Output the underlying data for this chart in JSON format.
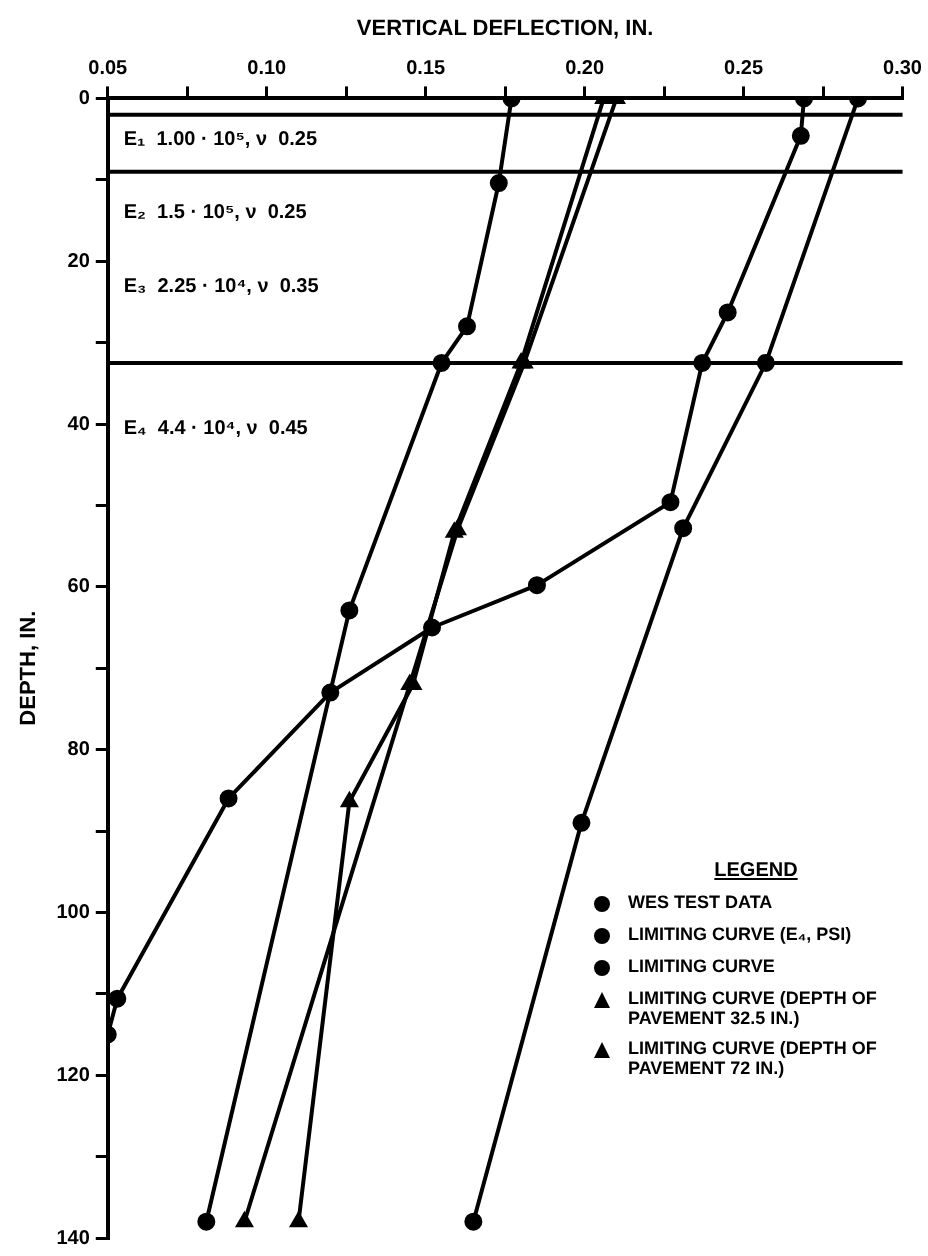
{
  "chart_data": {
    "type": "line",
    "xlabel": "VERTICAL DEFLECTION, IN.",
    "ylabel": "DEPTH, IN.",
    "legend_title": "LEGEND",
    "xlim": [
      0.05,
      0.3
    ],
    "xticks": [
      {
        "value": 0.05,
        "label": "0.05"
      },
      {
        "value": 0.075,
        "label": null
      },
      {
        "value": 0.1,
        "label": "0.10"
      },
      {
        "value": 0.125,
        "label": null
      },
      {
        "value": 0.15,
        "label": "0.15"
      },
      {
        "value": 0.175,
        "label": null
      },
      {
        "value": 0.2,
        "label": "0.20"
      },
      {
        "value": 0.225,
        "label": null
      },
      {
        "value": 0.25,
        "label": "0.25"
      },
      {
        "value": 0.275,
        "label": null
      },
      {
        "value": 0.3,
        "label": "0.30"
      }
    ],
    "ylim": [
      140,
      0
    ],
    "yticks": [
      0,
      {
        "value": 10,
        "label": null
      },
      20,
      {
        "value": 30,
        "label": null
      },
      40,
      {
        "value": 50,
        "label": null
      },
      60,
      {
        "value": 70,
        "label": null
      },
      80,
      {
        "value": 90,
        "label": null
      },
      100,
      {
        "value": 110,
        "label": null
      },
      120,
      {
        "value": 130,
        "label": null
      },
      140
    ],
    "grid": false,
    "legend": "bottom right",
    "line_style": "solid",
    "series": [
      {
        "name": "WES TEST DATA",
        "color": "#000000",
        "marker": "circle",
        "x": [
          0.269,
          0.268,
          0.245,
          0.237,
          0.227,
          0.185,
          0.152,
          0.12,
          0.088,
          0.053,
          0.05
        ],
        "values": [
          0,
          4.6,
          26.3,
          32.5,
          49.6,
          59.8,
          65,
          73,
          86,
          110.6,
          115
        ]
      },
      {
        "name": "LIMITING CURVE (E₄, PSI)",
        "color": "#000000",
        "marker": "circle",
        "x": [
          0.286,
          0.257,
          0.231,
          0.199,
          0.165
        ],
        "values": [
          0,
          32.5,
          52.8,
          89,
          138
        ]
      },
      {
        "name": "LIMITING CURVE",
        "color": "#000000",
        "marker": "circle",
        "x": [
          0.177,
          0.173,
          0.163,
          0.155,
          0.126,
          0.081
        ],
        "values": [
          0,
          10.4,
          28,
          32.5,
          62.9,
          138
        ]
      },
      {
        "name": "LIMITING CURVE (DEPTH OF PAVEMENT 32.5 IN.)",
        "color": "#000000",
        "marker": "triangle",
        "x": [
          0.206,
          0.18,
          0.159,
          0.146,
          0.126,
          0.11
        ],
        "values": [
          0,
          32.5,
          53.3,
          72,
          86.4,
          138
        ]
      },
      {
        "name": "LIMITING CURVE (DEPTH OF PAVEMENT 72 IN.)",
        "color": "#000000",
        "marker": "triangle",
        "x": [
          0.21,
          0.181,
          0.16,
          0.145,
          0.093
        ],
        "values": [
          0,
          32.5,
          53,
          72,
          138
        ]
      }
    ],
    "ref_lines": [
      {
        "axis": "y",
        "value": 2,
        "color": "#000000"
      },
      {
        "axis": "y",
        "value": 9,
        "color": "#000000"
      },
      {
        "axis": "y",
        "value": 32.5,
        "color": "#000000"
      }
    ],
    "annotations": [
      "E₁  1.00 · 10⁵, ν  0.25",
      "E₂  1.5 · 10⁵, ν  0.25",
      "E₃  2.25 · 10⁴, ν  0.35",
      "E₄  4.4 · 10⁴, ν  0.45"
    ]
  }
}
